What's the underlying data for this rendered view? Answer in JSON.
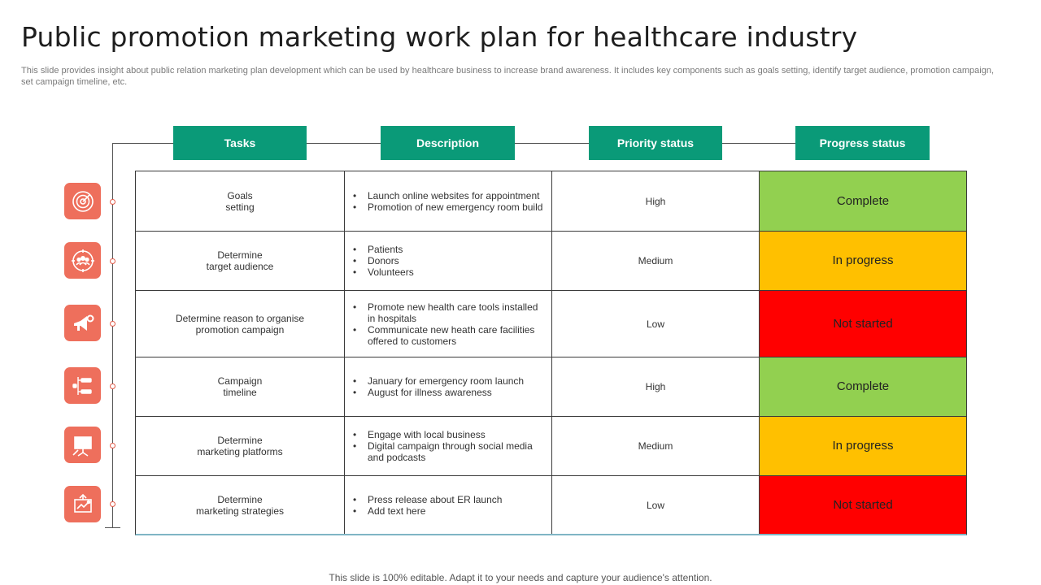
{
  "title": "Public promotion marketing work plan for healthcare industry",
  "subtitle": "This slide provides insight about public relation marketing plan development which can be used by healthcare business to increase brand awareness. It includes key components such as goals setting, identify target audience, promotion campaign, set campaign timeline, etc.",
  "headers": {
    "tasks": "Tasks",
    "description": "Description",
    "priority": "Priority status",
    "progress": "Progress status"
  },
  "colors": {
    "header": "#0a9a78",
    "icon_tile": "#ee6f5c",
    "complete": "#92d050",
    "in_progress": "#ffc000",
    "not_started": "#ff0000"
  },
  "rows": [
    {
      "task_line1": "Goals",
      "task_line2": "setting",
      "desc": [
        "Launch online websites for appointment",
        "Promotion of new emergency room build"
      ],
      "priority": "High",
      "progress": "Complete",
      "icon": "radar-icon"
    },
    {
      "task_line1": "Determine",
      "task_line2": "target audience",
      "desc": [
        "Patients",
        "Donors",
        "Volunteers"
      ],
      "priority": "Medium",
      "progress": "In progress",
      "icon": "audience-target-icon"
    },
    {
      "task_line1": "Determine reason to organise",
      "task_line2": "promotion campaign",
      "desc": [
        "Promote new health care tools installed in hospitals",
        "Communicate new heath care facilities offered to customers"
      ],
      "priority": "Low",
      "progress": "Not started",
      "icon": "megaphone-gear-icon"
    },
    {
      "task_line1": "Campaign",
      "task_line2": "timeline",
      "desc": [
        "January for emergency room launch",
        "August for illness awareness"
      ],
      "priority": "High",
      "progress": "Complete",
      "icon": "timeline-icon"
    },
    {
      "task_line1": "Determine",
      "task_line2": "marketing platforms",
      "desc": [
        "Engage with local business",
        "Digital campaign through social media and podcasts"
      ],
      "priority": "Medium",
      "progress": "In progress",
      "icon": "presentation-board-icon"
    },
    {
      "task_line1": "Determine",
      "task_line2": "marketing strategies",
      "desc": [
        "Press release about ER launch",
        "Add text here"
      ],
      "priority": "Low",
      "progress": "Not started",
      "icon": "strategy-board-icon"
    }
  ],
  "footer": "This slide is 100% editable. Adapt it to your needs and capture your audience's attention."
}
